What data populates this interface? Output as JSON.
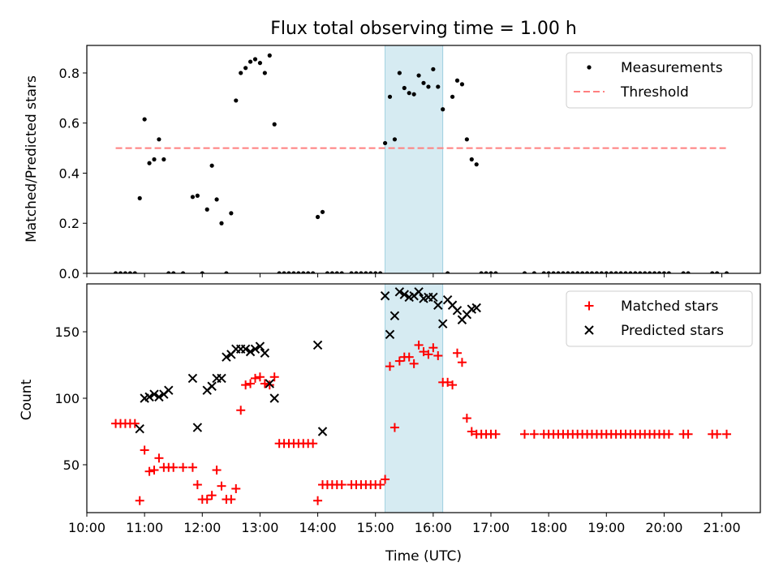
{
  "figure": {
    "title": "Flux total observing time = 1.00 h",
    "xlabel": "Time (UTC)"
  },
  "colors": {
    "measurement": "#000000",
    "threshold": "#ff7f7f",
    "matched": "#ff0000",
    "predicted": "#000000",
    "highlight": "#add8e6"
  },
  "chart_data": [
    {
      "type": "scatter",
      "ylabel": "Matched/Predicted stars",
      "xlim": [
        "10:00",
        "21:40"
      ],
      "ylim": [
        0,
        0.91
      ],
      "yticks": [
        0.0,
        0.2,
        0.4,
        0.6,
        0.8
      ],
      "highlight_span": [
        "15:10",
        "16:10"
      ],
      "legend": {
        "position": "top-right",
        "entries": [
          "Measurements",
          "Threshold"
        ]
      },
      "threshold": {
        "name": "Threshold",
        "y": 0.5,
        "x": [
          "10:30",
          "21:05"
        ]
      },
      "series": [
        {
          "name": "Measurements",
          "x": [
            "10:30",
            "10:35",
            "10:40",
            "10:45",
            "10:50",
            "10:55",
            "11:00",
            "11:05",
            "11:10",
            "11:15",
            "11:20",
            "11:25",
            "11:30",
            "11:40",
            "11:50",
            "11:55",
            "12:00",
            "12:05",
            "12:10",
            "12:15",
            "12:20",
            "12:25",
            "12:30",
            "12:35",
            "12:40",
            "12:45",
            "12:50",
            "12:55",
            "13:00",
            "13:05",
            "13:10",
            "13:15",
            "13:20",
            "13:25",
            "13:30",
            "13:35",
            "13:40",
            "13:45",
            "13:50",
            "13:55",
            "14:00",
            "14:05",
            "14:10",
            "14:15",
            "14:20",
            "14:25",
            "14:35",
            "14:40",
            "14:45",
            "14:50",
            "14:55",
            "15:00",
            "15:05",
            "15:10",
            "15:15",
            "15:20",
            "15:25",
            "15:30",
            "15:35",
            "15:40",
            "15:45",
            "15:50",
            "15:55",
            "16:00",
            "16:05",
            "16:10",
            "16:15",
            "16:20",
            "16:25",
            "16:30",
            "16:35",
            "16:40",
            "16:45",
            "16:50",
            "16:55",
            "17:00",
            "17:05",
            "17:35",
            "17:45",
            "17:55",
            "18:00",
            "18:05",
            "18:10",
            "18:15",
            "18:20",
            "18:25",
            "18:30",
            "18:35",
            "18:40",
            "18:45",
            "18:50",
            "18:55",
            "19:00",
            "19:05",
            "19:10",
            "19:15",
            "19:20",
            "19:25",
            "19:30",
            "19:35",
            "19:40",
            "19:45",
            "19:50",
            "19:55",
            "20:00",
            "20:05",
            "20:20",
            "20:25",
            "20:50",
            "20:55",
            "21:05"
          ],
          "y": [
            0.0,
            0.0,
            0.0,
            0.0,
            0.0,
            0.3,
            0.615,
            0.44,
            0.455,
            0.535,
            0.455,
            0.0,
            0.0,
            0.0,
            0.305,
            0.31,
            0.0,
            0.255,
            0.43,
            0.295,
            0.2,
            0.0,
            0.24,
            0.69,
            0.8,
            0.82,
            0.845,
            0.855,
            0.84,
            0.8,
            0.87,
            0.595,
            0.0,
            0.0,
            0.0,
            0.0,
            0.0,
            0.0,
            0.0,
            0.0,
            0.225,
            0.245,
            0.0,
            0.0,
            0.0,
            0.0,
            0.0,
            0.0,
            0.0,
            0.0,
            0.0,
            0.0,
            0.0,
            0.52,
            0.705,
            0.535,
            0.8,
            0.74,
            0.72,
            0.715,
            0.79,
            0.76,
            0.745,
            0.815,
            0.745,
            0.655,
            0.0,
            0.705,
            0.77,
            0.755,
            0.535,
            0.455,
            0.435,
            0.0,
            0.0,
            0.0,
            0.0,
            0.0,
            0.0,
            0.0,
            0.0,
            0.0,
            0.0,
            0.0,
            0.0,
            0.0,
            0.0,
            0.0,
            0.0,
            0.0,
            0.0,
            0.0,
            0.0,
            0.0,
            0.0,
            0.0,
            0.0,
            0.0,
            0.0,
            0.0,
            0.0,
            0.0,
            0.0,
            0.0,
            0.0,
            0.0,
            0.0,
            0.0,
            0.0,
            0.0,
            0.0
          ]
        }
      ]
    },
    {
      "type": "scatter",
      "ylabel": "Count",
      "xlim": [
        "10:00",
        "21:40"
      ],
      "ylim": [
        14,
        186
      ],
      "yticks": [
        50,
        100,
        150
      ],
      "xticks": [
        "10:00",
        "11:00",
        "12:00",
        "13:00",
        "14:00",
        "15:00",
        "16:00",
        "17:00",
        "18:00",
        "19:00",
        "20:00",
        "21:00"
      ],
      "highlight_span": [
        "15:10",
        "16:10"
      ],
      "legend": {
        "position": "top-right",
        "entries": [
          "Matched stars",
          "Predicted stars"
        ]
      },
      "series": [
        {
          "name": "Matched stars",
          "marker": "plus",
          "x": [
            "10:30",
            "10:35",
            "10:40",
            "10:45",
            "10:50",
            "10:55",
            "11:00",
            "11:05",
            "11:10",
            "11:15",
            "11:20",
            "11:25",
            "11:30",
            "11:40",
            "11:50",
            "11:55",
            "12:00",
            "12:05",
            "12:10",
            "12:15",
            "12:20",
            "12:25",
            "12:30",
            "12:35",
            "12:40",
            "12:45",
            "12:50",
            "12:55",
            "13:00",
            "13:05",
            "13:10",
            "13:15",
            "13:20",
            "13:25",
            "13:30",
            "13:35",
            "13:40",
            "13:45",
            "13:50",
            "13:55",
            "14:00",
            "14:05",
            "14:10",
            "14:15",
            "14:20",
            "14:25",
            "14:35",
            "14:40",
            "14:45",
            "14:50",
            "14:55",
            "15:00",
            "15:05",
            "15:10",
            "15:15",
            "15:20",
            "15:25",
            "15:30",
            "15:35",
            "15:40",
            "15:45",
            "15:50",
            "15:55",
            "16:00",
            "16:05",
            "16:10",
            "16:15",
            "16:20",
            "16:25",
            "16:30",
            "16:35",
            "16:40",
            "16:45",
            "16:50",
            "16:55",
            "17:00",
            "17:05",
            "17:35",
            "17:45",
            "17:55",
            "18:00",
            "18:05",
            "18:10",
            "18:15",
            "18:20",
            "18:25",
            "18:30",
            "18:35",
            "18:40",
            "18:45",
            "18:50",
            "18:55",
            "19:00",
            "19:05",
            "19:10",
            "19:15",
            "19:20",
            "19:25",
            "19:30",
            "19:35",
            "19:40",
            "19:45",
            "19:50",
            "19:55",
            "20:00",
            "20:05",
            "20:20",
            "20:25",
            "20:50",
            "20:55",
            "21:05"
          ],
          "y": [
            81,
            81,
            81,
            81,
            81,
            23,
            61,
            45,
            46,
            55,
            48,
            48,
            48,
            48,
            48,
            35,
            24,
            24,
            27,
            46,
            34,
            24,
            24,
            32,
            91,
            110,
            111,
            115,
            116,
            111,
            110,
            116,
            66,
            66,
            66,
            66,
            66,
            66,
            66,
            66,
            23,
            35,
            35,
            35,
            35,
            35,
            35,
            35,
            35,
            35,
            35,
            35,
            35,
            39,
            124,
            78,
            128,
            131,
            131,
            126,
            140,
            135,
            133,
            138,
            132,
            112,
            112,
            110,
            134,
            127,
            85,
            75,
            73,
            73,
            73,
            73,
            73,
            73,
            73,
            73,
            73,
            73,
            73,
            73,
            73,
            73,
            73,
            73,
            73,
            73,
            73,
            73,
            73,
            73,
            73,
            73,
            73,
            73,
            73,
            73,
            73,
            73,
            73,
            73,
            73,
            73,
            73,
            73,
            73,
            73,
            73
          ]
        },
        {
          "name": "Predicted stars",
          "marker": "x",
          "x": [
            "10:55",
            "11:00",
            "11:05",
            "11:10",
            "11:15",
            "11:20",
            "11:25",
            "11:50",
            "11:55",
            "12:05",
            "12:10",
            "12:15",
            "12:20",
            "12:25",
            "12:30",
            "12:35",
            "12:40",
            "12:45",
            "12:50",
            "12:55",
            "13:00",
            "13:05",
            "13:10",
            "13:15",
            "14:00",
            "14:05",
            "15:10",
            "15:15",
            "15:20",
            "15:25",
            "15:30",
            "15:35",
            "15:40",
            "15:45",
            "15:50",
            "15:55",
            "16:00",
            "16:05",
            "16:10",
            "16:15",
            "16:20",
            "16:25",
            "16:30",
            "16:35",
            "16:40",
            "16:45"
          ],
          "y": [
            77,
            100,
            101,
            103,
            101,
            103,
            106,
            115,
            78,
            106,
            109,
            115,
            115,
            131,
            133,
            137,
            137,
            137,
            135,
            137,
            139,
            134,
            111,
            100,
            140,
            75,
            177,
            148,
            162,
            180,
            178,
            176,
            177,
            180,
            175,
            176,
            176,
            170,
            156,
            174,
            170,
            166,
            159,
            163,
            167,
            168
          ]
        }
      ]
    }
  ]
}
